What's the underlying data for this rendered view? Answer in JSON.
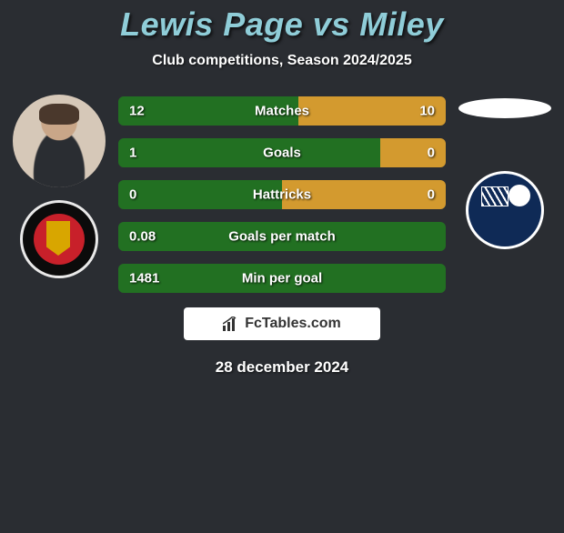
{
  "header": {
    "title": "Lewis Page vs Miley",
    "subtitle": "Club competitions, Season 2024/2025",
    "title_color": "#8fcdd8",
    "title_fontsize": 36,
    "subtitle_fontsize": 16
  },
  "background_color": "#2a2d32",
  "players": {
    "left": {
      "name": "Lewis Page",
      "has_photo": true,
      "club_badge": "ebbsfleet-united"
    },
    "right": {
      "name": "Miley",
      "has_photo": false,
      "club_badge": "southend-united"
    }
  },
  "bar_colors": {
    "left": "#227022",
    "right": "#d39a2f"
  },
  "stats": [
    {
      "label": "Matches",
      "left_value": "12",
      "right_value": "10",
      "left_pct": 55,
      "right_pct": 45
    },
    {
      "label": "Goals",
      "left_value": "1",
      "right_value": "0",
      "left_pct": 80,
      "right_pct": 20
    },
    {
      "label": "Hattricks",
      "left_value": "0",
      "right_value": "0",
      "left_pct": 50,
      "right_pct": 50
    },
    {
      "label": "Goals per match",
      "left_value": "0.08",
      "right_value": "",
      "left_pct": 100,
      "right_pct": 0
    },
    {
      "label": "Min per goal",
      "left_value": "1481",
      "right_value": "",
      "left_pct": 100,
      "right_pct": 0
    }
  ],
  "branding": {
    "text": "FcTables.com"
  },
  "footer": {
    "date": "28 december 2024"
  }
}
